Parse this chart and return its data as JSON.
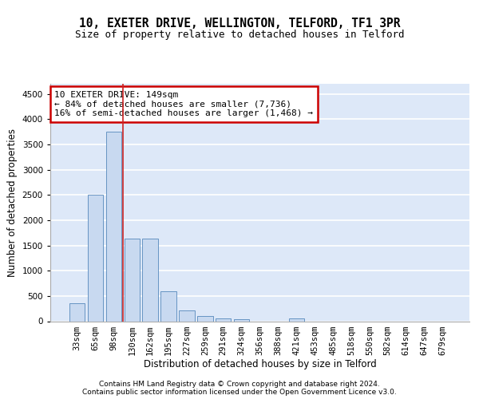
{
  "title": "10, EXETER DRIVE, WELLINGTON, TELFORD, TF1 3PR",
  "subtitle": "Size of property relative to detached houses in Telford",
  "xlabel": "Distribution of detached houses by size in Telford",
  "ylabel": "Number of detached properties",
  "bar_labels": [
    "33sqm",
    "65sqm",
    "98sqm",
    "130sqm",
    "162sqm",
    "195sqm",
    "227sqm",
    "259sqm",
    "291sqm",
    "324sqm",
    "356sqm",
    "388sqm",
    "421sqm",
    "453sqm",
    "485sqm",
    "518sqm",
    "550sqm",
    "582sqm",
    "614sqm",
    "647sqm",
    "679sqm"
  ],
  "bar_values": [
    360,
    2500,
    3750,
    1640,
    1640,
    590,
    220,
    110,
    60,
    40,
    0,
    0,
    60,
    0,
    0,
    0,
    0,
    0,
    0,
    0,
    0
  ],
  "bar_color_default": "#c8d9f0",
  "bar_color_highlight": "#c8d9f0",
  "bar_edge_color": "#5588bb",
  "vline_x": 2.5,
  "vline_color": "#cc2222",
  "annotation_text": "10 EXETER DRIVE: 149sqm\n← 84% of detached houses are smaller (7,736)\n16% of semi-detached houses are larger (1,468) →",
  "annotation_box_color": "#ffffff",
  "annotation_box_edge": "#cc0000",
  "annotation_fontsize": 8.0,
  "ylim": [
    0,
    4700
  ],
  "yticks": [
    0,
    500,
    1000,
    1500,
    2000,
    2500,
    3000,
    3500,
    4000,
    4500
  ],
  "bg_color": "#dde8f8",
  "grid_color": "#ffffff",
  "title_fontsize": 10.5,
  "subtitle_fontsize": 9,
  "xlabel_fontsize": 8.5,
  "ylabel_fontsize": 8.5,
  "tick_fontsize": 7.5,
  "footer_line1": "Contains HM Land Registry data © Crown copyright and database right 2024.",
  "footer_line2": "Contains public sector information licensed under the Open Government Licence v3.0.",
  "footer_fontsize": 6.5
}
